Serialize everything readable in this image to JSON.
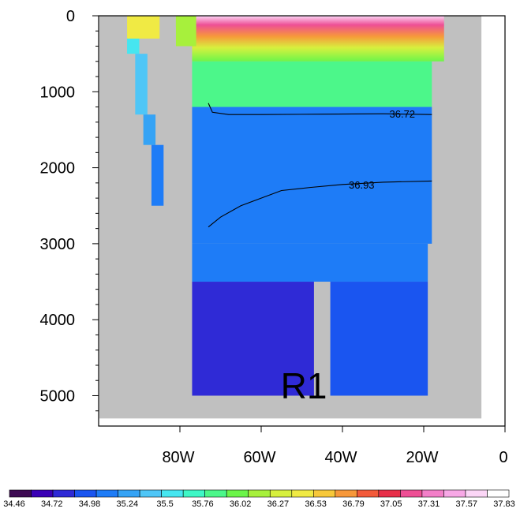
{
  "chart_data": {
    "type": "heatmap",
    "title": "",
    "xlabel": "",
    "ylabel": "",
    "panel_label": "R1",
    "x_axis": {
      "range": [
        -100,
        0
      ],
      "ticks": [
        -80,
        -60,
        -40,
        -20,
        0
      ],
      "tick_labels": [
        "80W",
        "60W",
        "40W",
        "20W",
        "0"
      ]
    },
    "y_axis": {
      "range": [
        5400,
        0
      ],
      "inverted": true,
      "ticks": [
        0,
        1000,
        2000,
        3000,
        4000,
        5000
      ],
      "tick_labels": [
        "0",
        "1000",
        "2000",
        "3000",
        "4000",
        "5000"
      ]
    },
    "land_color": "#c0c0c0",
    "colorbar": {
      "labels": [
        "34.46",
        "34.72",
        "34.98",
        "35.24",
        "35.5",
        "35.76",
        "36.02",
        "36.27",
        "36.53",
        "36.79",
        "37.05",
        "37.31",
        "37.57",
        "37.83"
      ],
      "colors": [
        "#3d0a52",
        "#3a00b5",
        "#2f2ad6",
        "#1a55f0",
        "#1e7cf7",
        "#35a3f5",
        "#4fc6f7",
        "#46e6f0",
        "#3ef7c6",
        "#4cf78a",
        "#6cf54a",
        "#a7f03c",
        "#d7f03e",
        "#f0ea44",
        "#f7c83a",
        "#f7983a",
        "#f25a3a",
        "#e8304a",
        "#ee4f95",
        "#f27fc8",
        "#f7a8e6",
        "#fbd6f6",
        "#ffffff"
      ]
    },
    "ocean_fields": [
      {
        "x": [
          -93,
          -90
        ],
        "y": [
          150,
          500
        ],
        "value": 35.5
      },
      {
        "x": [
          -91,
          -88
        ],
        "y": [
          500,
          1300
        ],
        "value": 35.35
      },
      {
        "x": [
          -89,
          -86
        ],
        "y": [
          1300,
          1700
        ],
        "value": 35.15
      },
      {
        "x": [
          -87,
          -84
        ],
        "y": [
          1700,
          2500
        ],
        "value": 35.1
      },
      {
        "x": [
          -77,
          -18
        ],
        "y": [
          600,
          1200
        ],
        "value": 35.9
      },
      {
        "x": [
          -77,
          -18
        ],
        "y": [
          1200,
          3000
        ],
        "value": 35.1
      },
      {
        "x": [
          -77,
          -19
        ],
        "y": [
          3000,
          3500
        ],
        "value": 34.95
      },
      {
        "x": [
          -77,
          -47
        ],
        "y": [
          3500,
          5000
        ],
        "value": 34.72
      },
      {
        "x": [
          -43,
          -19
        ],
        "y": [
          3500,
          5000
        ],
        "value": 34.8
      }
    ],
    "surface_peak_value": 37.83,
    "contours": [
      {
        "value": 36.72,
        "label": "36.72",
        "points": [
          [
            -73,
            1150
          ],
          [
            -72,
            1270
          ],
          [
            -68,
            1300
          ],
          [
            -60,
            1300
          ],
          [
            -45,
            1295
          ],
          [
            -30,
            1290
          ],
          [
            -18,
            1300
          ]
        ]
      },
      {
        "value": 36.93,
        "label": "36.93",
        "points": [
          [
            -73,
            2780
          ],
          [
            -70,
            2650
          ],
          [
            -65,
            2500
          ],
          [
            -60,
            2400
          ],
          [
            -55,
            2300
          ],
          [
            -48,
            2260
          ],
          [
            -40,
            2220
          ],
          [
            -30,
            2190
          ],
          [
            -18,
            2175
          ]
        ]
      }
    ]
  }
}
